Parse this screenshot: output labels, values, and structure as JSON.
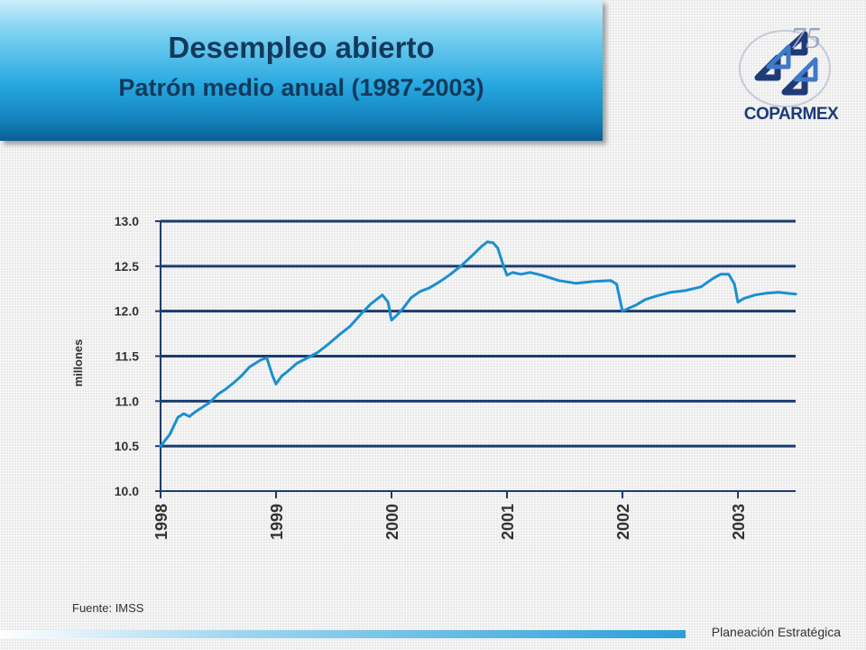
{
  "header": {
    "title": "Desempleo abierto",
    "subtitle": "Patrón medio anual (1987-2003)"
  },
  "logo": {
    "name": "COPARMEX",
    "anniversary": "75"
  },
  "colors": {
    "line": "#1b8fd0",
    "grid": "#1a3c70",
    "axis": "#1a3c70",
    "text": "#333333"
  },
  "chart_data": {
    "type": "line",
    "ylabel": "millones",
    "ylim": [
      10.0,
      13.0
    ],
    "yticks": [
      "13.0",
      "12.5",
      "12.0",
      "11.5",
      "11.0",
      "10.5",
      "10.0"
    ],
    "xticks": [
      "1998",
      "1999",
      "2000",
      "2001",
      "2002",
      "2003"
    ],
    "xlim": [
      1998.0,
      2003.5
    ],
    "grid": true,
    "series": [
      {
        "x": [
          1998.0,
          1998.08,
          1998.15,
          1998.2,
          1998.25,
          1998.3,
          1998.36,
          1998.42,
          1998.5,
          1998.56,
          1998.63,
          1998.7,
          1998.77,
          1998.82,
          1998.87,
          1998.92,
          1998.97,
          1999.0,
          1999.05,
          1999.1,
          1999.18,
          1999.27,
          1999.36,
          1999.45,
          1999.55,
          1999.64,
          1999.73,
          1999.82,
          1999.92,
          1999.97,
          2000.0,
          2000.05,
          2000.1,
          2000.17,
          2000.25,
          2000.33,
          2000.42,
          2000.5,
          2000.6,
          2000.7,
          2000.78,
          2000.83,
          2000.88,
          2000.92,
          2000.97,
          2001.0,
          2001.05,
          2001.12,
          2001.2,
          2001.3,
          2001.45,
          2001.6,
          2001.75,
          2001.9,
          2001.95,
          2002.0,
          2002.05,
          2002.12,
          2002.2,
          2002.3,
          2002.42,
          2002.55,
          2002.68,
          2002.78,
          2002.85,
          2002.92,
          2002.97,
          2003.0,
          2003.05,
          2003.15,
          2003.25,
          2003.35,
          2003.42,
          2003.5
        ],
        "y": [
          10.5,
          10.63,
          10.82,
          10.86,
          10.83,
          10.88,
          10.93,
          10.98,
          11.08,
          11.13,
          11.2,
          11.28,
          11.38,
          11.42,
          11.46,
          11.48,
          11.28,
          11.19,
          11.28,
          11.33,
          11.42,
          11.48,
          11.54,
          11.63,
          11.74,
          11.83,
          11.96,
          12.08,
          12.18,
          12.1,
          11.9,
          11.96,
          12.03,
          12.15,
          12.22,
          12.26,
          12.33,
          12.4,
          12.5,
          12.62,
          12.72,
          12.77,
          12.76,
          12.7,
          12.5,
          12.4,
          12.43,
          12.41,
          12.43,
          12.4,
          12.34,
          12.31,
          12.33,
          12.34,
          12.3,
          12.0,
          12.03,
          12.07,
          12.13,
          12.17,
          12.21,
          12.23,
          12.27,
          12.36,
          12.41,
          12.41,
          12.3,
          12.1,
          12.14,
          12.18,
          12.2,
          12.21,
          12.2,
          12.19
        ]
      }
    ]
  },
  "source": "Fuente: IMSS",
  "footer": "Planeación Estratégica"
}
